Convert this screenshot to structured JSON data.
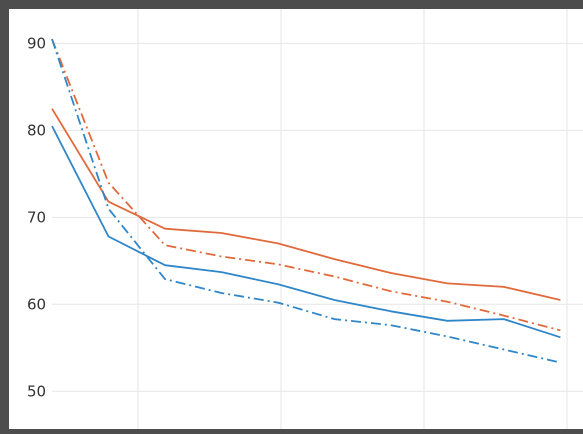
{
  "chart_data": {
    "type": "line",
    "title": "",
    "xlabel": "",
    "ylabel": "",
    "x": [
      0,
      1,
      2,
      3,
      4,
      5,
      6,
      7,
      8,
      9
    ],
    "xlim": [
      0,
      9.4
    ],
    "ylim": [
      47.5,
      93.5
    ],
    "yticks": [
      50,
      60,
      70,
      80,
      90
    ],
    "grid": true,
    "legend": "none",
    "series": [
      {
        "color": "#e06a3b",
        "dash": "solid",
        "values": [
          82.5,
          71.8,
          68.7,
          68.2,
          67.0,
          65.2,
          63.6,
          62.4,
          62.0,
          60.5
        ]
      },
      {
        "color": "#e06a3b",
        "dash": "dashdot",
        "values": [
          90.5,
          74.0,
          66.8,
          65.5,
          64.6,
          63.2,
          61.5,
          60.3,
          58.7,
          57.0
        ]
      },
      {
        "color": "#2f86c8",
        "dash": "solid",
        "values": [
          80.5,
          67.8,
          64.5,
          63.7,
          62.3,
          60.5,
          59.2,
          58.1,
          58.3,
          56.2
        ]
      },
      {
        "color": "#2f86c8",
        "dash": "dashdot",
        "values": [
          90.5,
          71.0,
          62.9,
          61.3,
          60.2,
          58.3,
          57.6,
          56.3,
          54.8,
          53.3
        ]
      }
    ]
  }
}
